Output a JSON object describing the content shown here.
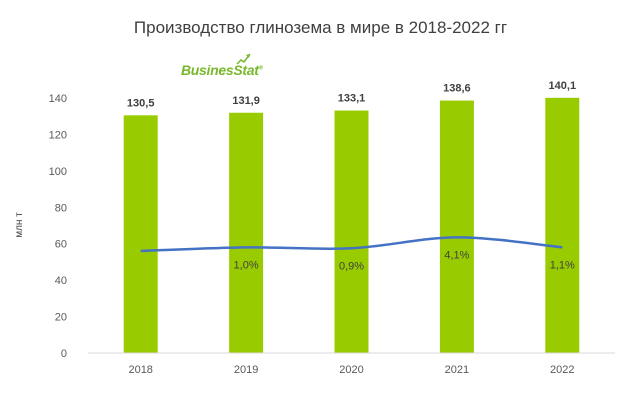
{
  "title": "Производство глинозема в мире в 2018-2022 гг",
  "logo": {
    "text": "BusinesStat",
    "mark": "®"
  },
  "chart_data": {
    "type": "bar",
    "title": "Производство глинозема в мире в 2018-2022 гг",
    "ylabel": "млн т",
    "xlabel": "",
    "ylim": [
      0,
      140
    ],
    "yticks": [
      "0",
      "20",
      "40",
      "60",
      "80",
      "100",
      "120",
      "140"
    ],
    "categories": [
      "2018",
      "2019",
      "2020",
      "2021",
      "2022"
    ],
    "series": [
      {
        "values": [
          130.5,
          131.9,
          133.1,
          138.6,
          140.1
        ],
        "labels": [
          "130,5",
          "131,9",
          "133,1",
          "138,6",
          "140,1"
        ],
        "color": "#99cc00"
      }
    ],
    "growth_line": {
      "values": [
        56,
        58,
        57.5,
        63.5,
        58
      ],
      "labels": [
        "",
        "1,0%",
        "0,9%",
        "4,1%",
        "1,1%"
      ],
      "color": "#4472c4"
    },
    "grid": false,
    "legend": "none"
  }
}
